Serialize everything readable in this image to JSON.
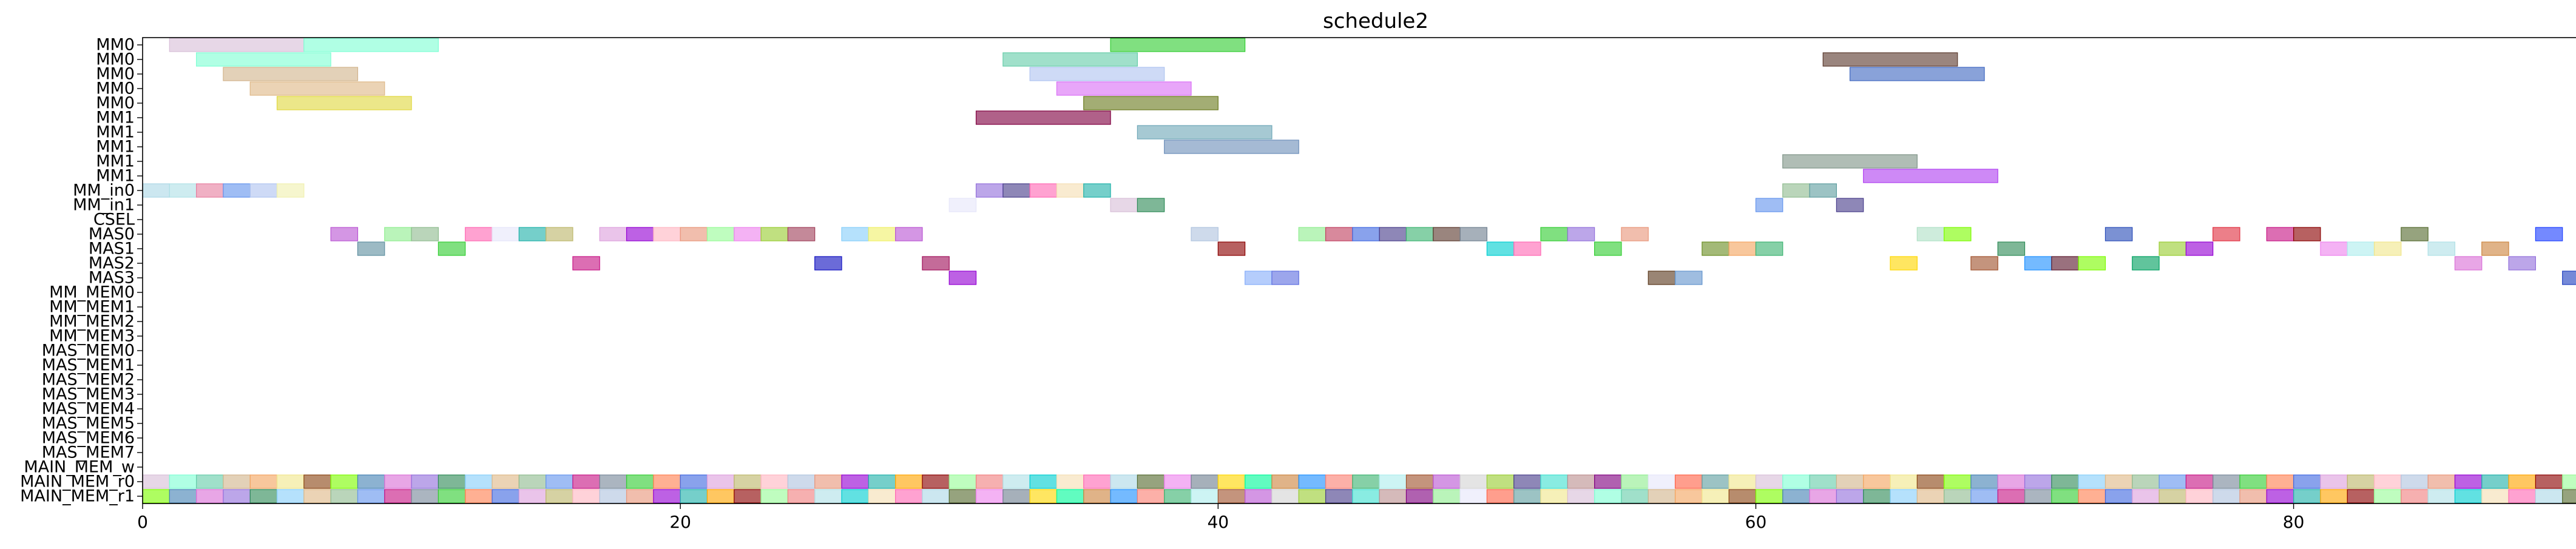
{
  "chart_data": {
    "type": "gantt",
    "title": "schedule2",
    "xlabel": "",
    "ylabel": "",
    "xlim": [
      0,
      91
    ],
    "x_ticks": [
      0,
      20,
      40,
      60,
      80
    ],
    "grid": false,
    "legend": "none",
    "rows": [
      "MM0",
      "MM0",
      "MM0",
      "MM0",
      "MM0",
      "MM1",
      "MM1",
      "MM1",
      "MM1",
      "MM1",
      "MM_in0",
      "MM_in1",
      "CSEL",
      "MAS0",
      "MAS1",
      "MAS2",
      "MAS3",
      "MM_MEM0",
      "MM_MEM1",
      "MM_MEM2",
      "MM_MEM3",
      "MAS_MEM0",
      "MAS_MEM1",
      "MAS_MEM2",
      "MAS_MEM3",
      "MAS_MEM4",
      "MAS_MEM5",
      "MAS_MEM6",
      "MAS_MEM7",
      "MAIN_MEM_w",
      "MAIN_MEM_r0",
      "MAIN_MEM_r1"
    ],
    "palette": [
      "#d8bfd8",
      "#7fffd4",
      "#66cdaa",
      "#d2b48c",
      "#f4a460",
      "#f0e68c",
      "#8b4513",
      "#7cfc00",
      "#4682b4",
      "#da70d6",
      "#9370db",
      "#2e8b57",
      "#87cefa",
      "#deb887",
      "#8fbc8f",
      "#6495ed",
      "#c71585",
      "#778899",
      "#32cd32",
      "#ff7f50",
      "#4169e1",
      "#dda0dd",
      "#bdb76b",
      "#ffb6c1",
      "#b0c4de",
      "#e9967a",
      "#9400d3",
      "#20b2aa",
      "#ffa500",
      "#8b0000",
      "#98fb98",
      "#f08080",
      "#b0e0e6",
      "#00ced1",
      "#f5deb3",
      "#ff69b4",
      "#add8e6",
      "#556b2f",
      "#ee82ee",
      "#708090",
      "#ffd700",
      "#00fa9a",
      "#cd853f",
      "#1e90ff",
      "#fa8072",
      "#3cb371",
      "#afeeee",
      "#a0522d",
      "#ba55d3",
      "#d3d3d3",
      "#9acd32",
      "#483d8b",
      "#40e0d0",
      "#bc8f8f",
      "#800080",
      "#90ee90",
      "#e6e6fa",
      "#ff6347",
      "#5f9ea0",
      "#f0e68c"
    ],
    "bars": [
      {
        "row": 0,
        "start": 1,
        "end": 6,
        "color": "#d8bfd8"
      },
      {
        "row": 0,
        "start": 6,
        "end": 11,
        "color": "#7fffd4"
      },
      {
        "row": 0,
        "start": 36,
        "end": 41,
        "color": "#32cd32"
      },
      {
        "row": 1,
        "start": 2,
        "end": 7,
        "color": "#7fffd4"
      },
      {
        "row": 1,
        "start": 32,
        "end": 37,
        "color": "#66cdaa"
      },
      {
        "row": 1,
        "start": 62.5,
        "end": 67.5,
        "color": "#5c3a2e"
      },
      {
        "row": 2,
        "start": 3,
        "end": 8,
        "color": "#d2b48c"
      },
      {
        "row": 2,
        "start": 33,
        "end": 38,
        "color": "#b0c4f0"
      },
      {
        "row": 2,
        "start": 63.5,
        "end": 68.5,
        "color": "#4169c1"
      },
      {
        "row": 3,
        "start": 4,
        "end": 9,
        "color": "#deb887"
      },
      {
        "row": 3,
        "start": 34,
        "end": 39,
        "color": "#da70f6"
      },
      {
        "row": 4,
        "start": 5,
        "end": 10,
        "color": "#e0d840"
      },
      {
        "row": 4,
        "start": 35,
        "end": 40,
        "color": "#6b7b1f"
      },
      {
        "row": 5,
        "start": 31,
        "end": 36,
        "color": "#800040"
      },
      {
        "row": 6,
        "start": 37,
        "end": 42,
        "color": "#6fa8b8"
      },
      {
        "row": 7,
        "start": 38,
        "end": 43,
        "color": "#6d8fba"
      },
      {
        "row": 8,
        "start": 61,
        "end": 66,
        "color": "#7f9488"
      },
      {
        "row": 9,
        "start": 64,
        "end": 69,
        "color": "#b040f0"
      },
      {
        "row": 10,
        "start": 0,
        "end": 1,
        "color": "#add8e6"
      },
      {
        "row": 10,
        "start": 1,
        "end": 2,
        "color": "#b0e0e6"
      },
      {
        "row": 10,
        "start": 2,
        "end": 3,
        "color": "#e77fa0"
      },
      {
        "row": 10,
        "start": 3,
        "end": 4,
        "color": "#6495ed"
      },
      {
        "row": 10,
        "start": 4,
        "end": 5,
        "color": "#b0c4f0"
      },
      {
        "row": 10,
        "start": 5,
        "end": 6,
        "color": "#f0f0b0"
      },
      {
        "row": 10,
        "start": 31,
        "end": 32,
        "color": "#9370db"
      },
      {
        "row": 10,
        "start": 32,
        "end": 33,
        "color": "#483d8b"
      },
      {
        "row": 10,
        "start": 33,
        "end": 34,
        "color": "#ff69b4"
      },
      {
        "row": 10,
        "start": 34,
        "end": 35,
        "color": "#f5deb3"
      },
      {
        "row": 10,
        "start": 35,
        "end": 36,
        "color": "#20b2aa"
      },
      {
        "row": 10,
        "start": 61,
        "end": 62,
        "color": "#8fbc8f"
      },
      {
        "row": 10,
        "start": 62,
        "end": 63,
        "color": "#5f9ea0"
      },
      {
        "row": 11,
        "start": 30,
        "end": 31,
        "color": "#e6e6fa"
      },
      {
        "row": 11,
        "start": 36,
        "end": 37,
        "color": "#d8bfd8"
      },
      {
        "row": 11,
        "start": 37,
        "end": 38,
        "color": "#2e8b57"
      },
      {
        "row": 11,
        "start": 60,
        "end": 61,
        "color": "#6495ed"
      },
      {
        "row": 11,
        "start": 63,
        "end": 64,
        "color": "#483d8b"
      },
      {
        "row": 13,
        "start": 7,
        "end": 8,
        "color": "#ba55d3"
      },
      {
        "row": 13,
        "start": 9,
        "end": 10,
        "color": "#90ee90"
      },
      {
        "row": 13,
        "start": 10,
        "end": 11,
        "color": "#8fbc8f"
      },
      {
        "row": 13,
        "start": 12,
        "end": 13,
        "color": "#ff69b4"
      },
      {
        "row": 13,
        "start": 13,
        "end": 14,
        "color": "#e6e6fa"
      },
      {
        "row": 13,
        "start": 14,
        "end": 15,
        "color": "#20b2aa"
      },
      {
        "row": 13,
        "start": 15,
        "end": 16,
        "color": "#bdb76b"
      },
      {
        "row": 13,
        "start": 17,
        "end": 18,
        "color": "#dda0dd"
      },
      {
        "row": 13,
        "start": 18,
        "end": 19,
        "color": "#9400d3"
      },
      {
        "row": 13,
        "start": 19,
        "end": 20,
        "color": "#ffb6c1"
      },
      {
        "row": 13,
        "start": 20,
        "end": 21,
        "color": "#e9967a"
      },
      {
        "row": 13,
        "start": 21,
        "end": 22,
        "color": "#98fb98"
      },
      {
        "row": 13,
        "start": 22,
        "end": 23,
        "color": "#ee82ee"
      },
      {
        "row": 13,
        "start": 23,
        "end": 24,
        "color": "#9acd32"
      },
      {
        "row": 13,
        "start": 24,
        "end": 25,
        "color": "#a0405a"
      },
      {
        "row": 13,
        "start": 26,
        "end": 27,
        "color": "#87cefa"
      },
      {
        "row": 13,
        "start": 27,
        "end": 28,
        "color": "#f0f06a"
      },
      {
        "row": 13,
        "start": 28,
        "end": 29,
        "color": "#ba55d3"
      },
      {
        "row": 13,
        "start": 39,
        "end": 40,
        "color": "#b0c4de"
      },
      {
        "row": 13,
        "start": 43,
        "end": 44,
        "color": "#90ee90"
      },
      {
        "row": 13,
        "start": 44,
        "end": 45,
        "color": "#c04060"
      },
      {
        "row": 13,
        "start": 45,
        "end": 46,
        "color": "#4169e1"
      },
      {
        "row": 13,
        "start": 46,
        "end": 47,
        "color": "#483d8b"
      },
      {
        "row": 13,
        "start": 47,
        "end": 48,
        "color": "#3cb371"
      },
      {
        "row": 13,
        "start": 48,
        "end": 49,
        "color": "#5c3a2e"
      },
      {
        "row": 13,
        "start": 49,
        "end": 50,
        "color": "#708090"
      },
      {
        "row": 13,
        "start": 52,
        "end": 53,
        "color": "#32cd32"
      },
      {
        "row": 13,
        "start": 53,
        "end": 54,
        "color": "#9370db"
      },
      {
        "row": 13,
        "start": 55,
        "end": 56,
        "color": "#e9967a"
      },
      {
        "row": 13,
        "start": 66,
        "end": 67,
        "color": "#b0e0c6"
      },
      {
        "row": 13,
        "start": 67,
        "end": 68,
        "color": "#7cfc00"
      },
      {
        "row": 13,
        "start": 73,
        "end": 74,
        "color": "#2a4db8"
      },
      {
        "row": 13,
        "start": 77,
        "end": 78,
        "color": "#e03040"
      },
      {
        "row": 13,
        "start": 79,
        "end": 80,
        "color": "#c71585"
      },
      {
        "row": 13,
        "start": 80,
        "end": 81,
        "color": "#8b0000"
      },
      {
        "row": 13,
        "start": 84,
        "end": 85,
        "color": "#556b2f"
      },
      {
        "row": 13,
        "start": 89,
        "end": 90,
        "color": "#1e40ff"
      },
      {
        "row": 14,
        "start": 8,
        "end": 9,
        "color": "#5f8fa0"
      },
      {
        "row": 14,
        "start": 11,
        "end": 12,
        "color": "#32cd32"
      },
      {
        "row": 14,
        "start": 40,
        "end": 41,
        "color": "#8b0000"
      },
      {
        "row": 14,
        "start": 50,
        "end": 51,
        "color": "#00ced1"
      },
      {
        "row": 14,
        "start": 51,
        "end": 52,
        "color": "#ff69b4"
      },
      {
        "row": 14,
        "start": 54,
        "end": 55,
        "color": "#32cd32"
      },
      {
        "row": 14,
        "start": 58,
        "end": 59,
        "color": "#6b8e23"
      },
      {
        "row": 14,
        "start": 59,
        "end": 60,
        "color": "#f4a460"
      },
      {
        "row": 14,
        "start": 60,
        "end": 61,
        "color": "#3cb371"
      },
      {
        "row": 14,
        "start": 69,
        "end": 70,
        "color": "#2e8b57"
      },
      {
        "row": 14,
        "start": 75,
        "end": 76,
        "color": "#9acd32"
      },
      {
        "row": 14,
        "start": 76,
        "end": 77,
        "color": "#9400d3"
      },
      {
        "row": 14,
        "start": 81,
        "end": 82,
        "color": "#ee82ee"
      },
      {
        "row": 14,
        "start": 82,
        "end": 83,
        "color": "#afeeee"
      },
      {
        "row": 14,
        "start": 83,
        "end": 84,
        "color": "#f0e68c"
      },
      {
        "row": 14,
        "start": 85,
        "end": 86,
        "color": "#b0e0e6"
      },
      {
        "row": 14,
        "start": 87,
        "end": 88,
        "color": "#cd853f"
      },
      {
        "row": 15,
        "start": 16,
        "end": 17,
        "color": "#c71585"
      },
      {
        "row": 15,
        "start": 25,
        "end": 26,
        "color": "#1010c0"
      },
      {
        "row": 15,
        "start": 29,
        "end": 30,
        "color": "#a0105a"
      },
      {
        "row": 15,
        "start": 65,
        "end": 66,
        "color": "#ffd700"
      },
      {
        "row": 15,
        "start": 68,
        "end": 69,
        "color": "#a0522d"
      },
      {
        "row": 15,
        "start": 70,
        "end": 71,
        "color": "#1e90ff"
      },
      {
        "row": 15,
        "start": 71,
        "end": 72,
        "color": "#5c1a2e"
      },
      {
        "row": 15,
        "start": 72,
        "end": 73,
        "color": "#7cfc00"
      },
      {
        "row": 15,
        "start": 74,
        "end": 75,
        "color": "#00a060"
      },
      {
        "row": 15,
        "start": 86,
        "end": 87,
        "color": "#da70d6"
      },
      {
        "row": 15,
        "start": 88,
        "end": 89,
        "color": "#9370db"
      },
      {
        "row": 16,
        "start": 30,
        "end": 31,
        "color": "#9400d3"
      },
      {
        "row": 16,
        "start": 41,
        "end": 42,
        "color": "#87aefa"
      },
      {
        "row": 16,
        "start": 42,
        "end": 43,
        "color": "#6070e0"
      },
      {
        "row": 16,
        "start": 56,
        "end": 57,
        "color": "#5c3a1e"
      },
      {
        "row": 16,
        "start": 57,
        "end": 58,
        "color": "#6495cd"
      },
      {
        "row": 16,
        "start": 90,
        "end": 91,
        "color": "#2040c0"
      }
    ],
    "pattern_rows": [
      30,
      31
    ],
    "pattern_range": [
      0,
      91
    ],
    "pattern_offsets": [
      0,
      7
    ]
  }
}
